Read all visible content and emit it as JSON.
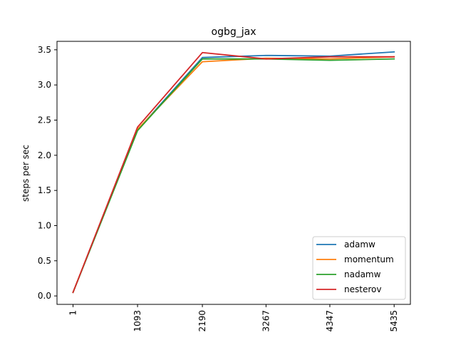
{
  "chart_data": {
    "type": "line",
    "title": "ogbg_jax",
    "xlabel": "",
    "ylabel": "steps per sec",
    "x": [
      1,
      1093,
      2190,
      3267,
      4347,
      5435
    ],
    "x_tick_labels": [
      "1",
      "1093",
      "2190",
      "3267",
      "4347",
      "5435"
    ],
    "y_ticks": [
      0.0,
      0.5,
      1.0,
      1.5,
      2.0,
      2.5,
      3.0,
      3.5
    ],
    "y_tick_labels": [
      "0.0",
      "0.5",
      "1.0",
      "1.5",
      "2.0",
      "2.5",
      "3.0",
      "3.5"
    ],
    "ylim": [
      -0.12,
      3.62
    ],
    "xlim": [
      -270,
      5710
    ],
    "grid": false,
    "legend_position": "lower right",
    "series": [
      {
        "name": "adamw",
        "color": "#1f77b4",
        "values": [
          0.05,
          2.36,
          3.39,
          3.42,
          3.41,
          3.47
        ]
      },
      {
        "name": "momentum",
        "color": "#ff7f0e",
        "values": [
          0.05,
          2.37,
          3.33,
          3.38,
          3.37,
          3.4
        ]
      },
      {
        "name": "nadamw",
        "color": "#2ca02c",
        "values": [
          0.05,
          2.35,
          3.37,
          3.37,
          3.35,
          3.37
        ]
      },
      {
        "name": "nesterov",
        "color": "#d62728",
        "values": [
          0.05,
          2.4,
          3.46,
          3.37,
          3.4,
          3.4
        ]
      }
    ]
  }
}
